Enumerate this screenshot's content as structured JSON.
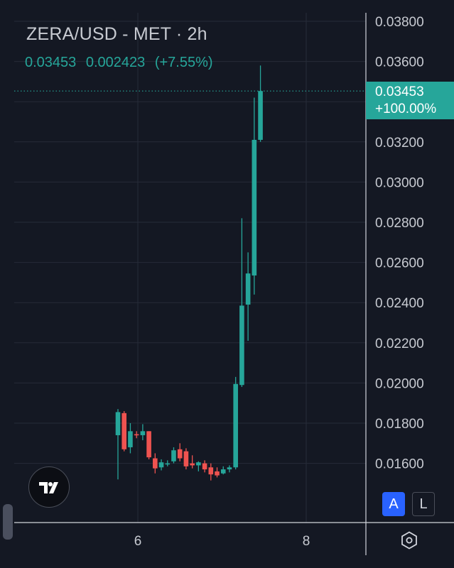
{
  "header": {
    "title": "ZERA/USD - MET · 2h",
    "last_price": "0.03453",
    "change_abs": "0.002423",
    "change_pct": "(+7.55%)"
  },
  "price_badge": {
    "price": "0.03453",
    "pct": "+100.00%"
  },
  "controls": {
    "auto_label": "A",
    "log_label": "L"
  },
  "icons": {
    "logo": "tradingview-logo-icon",
    "settings": "settings-hexagon-icon"
  },
  "colors": {
    "background": "#141823",
    "up": "#26a69a",
    "down": "#ef5350",
    "accent": "#2962ff"
  },
  "chart_data": {
    "type": "candlestick",
    "title": "ZERA/USD - MET · 2h",
    "ylim": [
      0.0148,
      0.039
    ],
    "y_ticks": [
      "0.03800",
      "0.03600",
      "0.03400",
      "0.03200",
      "0.03000",
      "0.02800",
      "0.02600",
      "0.02400",
      "0.02200",
      "0.02000",
      "0.01800",
      "0.01600"
    ],
    "x_ticks": [
      "6",
      "8"
    ],
    "last_price": 0.03453,
    "candles": [
      {
        "o": 0.0174,
        "h": 0.0187,
        "l": 0.0152,
        "c": 0.01855
      },
      {
        "o": 0.0185,
        "h": 0.0186,
        "l": 0.0166,
        "c": 0.0167
      },
      {
        "o": 0.0168,
        "h": 0.018,
        "l": 0.0165,
        "c": 0.0176
      },
      {
        "o": 0.01745,
        "h": 0.0176,
        "l": 0.01725,
        "c": 0.0174
      },
      {
        "o": 0.0174,
        "h": 0.01795,
        "l": 0.01715,
        "c": 0.0176
      },
      {
        "o": 0.0176,
        "h": 0.0176,
        "l": 0.0162,
        "c": 0.0163
      },
      {
        "o": 0.01625,
        "h": 0.0165,
        "l": 0.0155,
        "c": 0.01575
      },
      {
        "o": 0.0158,
        "h": 0.0162,
        "l": 0.01565,
        "c": 0.01605
      },
      {
        "o": 0.01595,
        "h": 0.01615,
        "l": 0.01585,
        "c": 0.016
      },
      {
        "o": 0.0161,
        "h": 0.0168,
        "l": 0.016,
        "c": 0.01665
      },
      {
        "o": 0.0167,
        "h": 0.017,
        "l": 0.0161,
        "c": 0.01625
      },
      {
        "o": 0.0166,
        "h": 0.01675,
        "l": 0.0157,
        "c": 0.01585
      },
      {
        "o": 0.016,
        "h": 0.0164,
        "l": 0.01575,
        "c": 0.0159
      },
      {
        "o": 0.0159,
        "h": 0.0161,
        "l": 0.0156,
        "c": 0.01605
      },
      {
        "o": 0.016,
        "h": 0.01615,
        "l": 0.01555,
        "c": 0.0157
      },
      {
        "o": 0.0158,
        "h": 0.016,
        "l": 0.01515,
        "c": 0.01545
      },
      {
        "o": 0.0156,
        "h": 0.0158,
        "l": 0.0153,
        "c": 0.0154
      },
      {
        "o": 0.0155,
        "h": 0.01585,
        "l": 0.01545,
        "c": 0.0157
      },
      {
        "o": 0.0157,
        "h": 0.0159,
        "l": 0.01555,
        "c": 0.0158
      },
      {
        "o": 0.0158,
        "h": 0.0203,
        "l": 0.0157,
        "c": 0.01995
      },
      {
        "o": 0.0199,
        "h": 0.0282,
        "l": 0.0198,
        "c": 0.02385
      },
      {
        "o": 0.0239,
        "h": 0.0265,
        "l": 0.0221,
        "c": 0.02545
      },
      {
        "o": 0.02535,
        "h": 0.0342,
        "l": 0.0244,
        "c": 0.0321
      },
      {
        "o": 0.0321,
        "h": 0.0358,
        "l": 0.032,
        "c": 0.03453
      }
    ],
    "grid": true
  }
}
